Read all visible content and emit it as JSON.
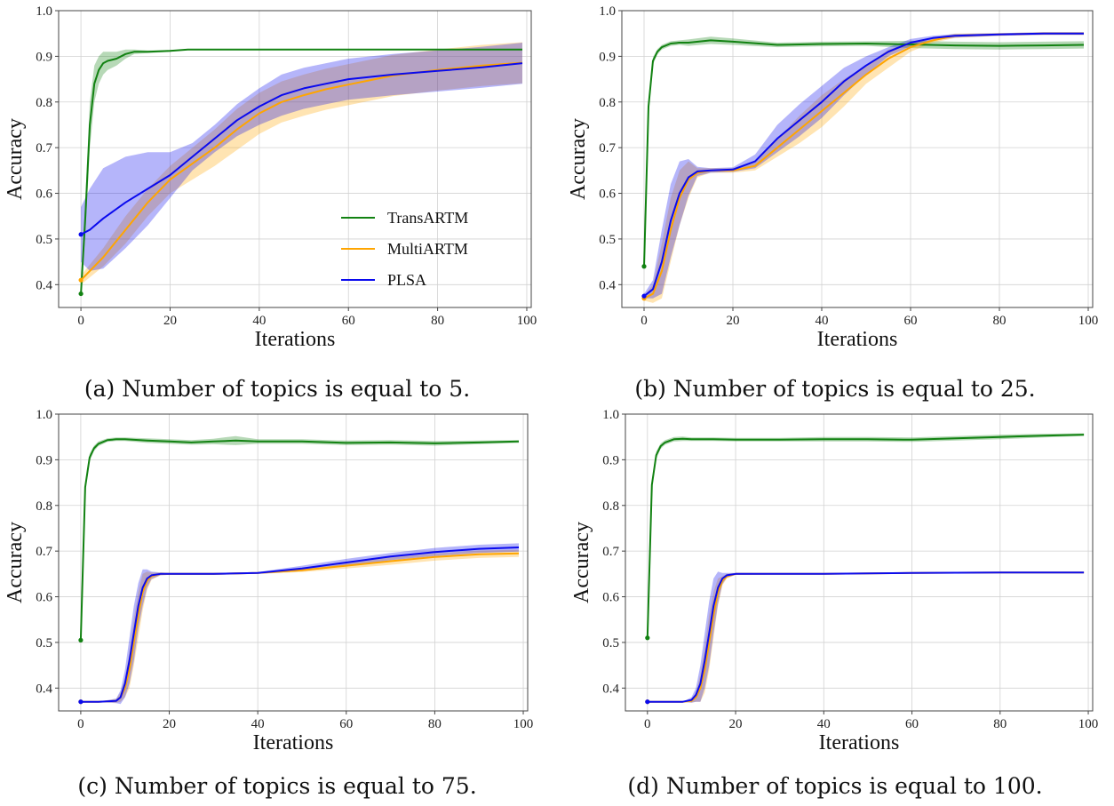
{
  "legend": [
    {
      "name": "TransARTM",
      "color": "#128212"
    },
    {
      "name": "MultiARTM",
      "color": "#ffa500"
    },
    {
      "name": "PLSA",
      "color": "#0a0aee"
    }
  ],
  "chart_data": [
    {
      "type": "line",
      "caption": "(a) Number of topics is equal to 5.",
      "xlabel": "Iterations",
      "ylabel": "Accuracy",
      "xlim": [
        -5,
        101
      ],
      "ylim": [
        0.35,
        1.0
      ],
      "xticks": [
        0,
        20,
        40,
        60,
        80,
        100
      ],
      "yticks": [
        0.4,
        0.5,
        0.6,
        0.7,
        0.8,
        0.9,
        1.0
      ],
      "grid": true,
      "legend_position": "bottom-right",
      "show_legend": true,
      "series": [
        {
          "name": "TransARTM",
          "color": "#128212",
          "x": [
            0,
            1,
            2,
            3,
            4,
            5,
            6,
            8,
            10,
            12,
            15,
            20,
            24,
            30,
            40,
            60,
            80,
            99
          ],
          "y": [
            0.38,
            0.55,
            0.75,
            0.84,
            0.87,
            0.885,
            0.89,
            0.895,
            0.905,
            0.91,
            0.91,
            0.912,
            0.915,
            0.915,
            0.915,
            0.915,
            0.915,
            0.915
          ],
          "band": [
            0.0,
            0.04,
            0.05,
            0.04,
            0.03,
            0.025,
            0.02,
            0.015,
            0.01,
            0.005,
            0.003,
            0.002,
            0.0,
            0.0,
            0.0,
            0.0,
            0.0,
            0.0
          ]
        },
        {
          "name": "MultiARTM",
          "color": "#ffa500",
          "x": [
            0,
            5,
            10,
            15,
            20,
            25,
            30,
            35,
            40,
            45,
            50,
            55,
            60,
            65,
            70,
            80,
            90,
            99
          ],
          "y": [
            0.41,
            0.46,
            0.52,
            0.58,
            0.63,
            0.665,
            0.7,
            0.74,
            0.775,
            0.8,
            0.815,
            0.828,
            0.838,
            0.848,
            0.858,
            0.87,
            0.88,
            0.886
          ],
          "band": [
            0.01,
            0.02,
            0.03,
            0.03,
            0.03,
            0.035,
            0.04,
            0.045,
            0.045,
            0.045,
            0.045,
            0.045,
            0.045,
            0.045,
            0.045,
            0.045,
            0.045,
            0.045
          ]
        },
        {
          "name": "PLSA",
          "color": "#0a0aee",
          "x": [
            0,
            2,
            5,
            10,
            15,
            20,
            25,
            30,
            35,
            40,
            45,
            50,
            55,
            60,
            70,
            80,
            90,
            99
          ],
          "y": [
            0.51,
            0.52,
            0.545,
            0.58,
            0.61,
            0.64,
            0.68,
            0.72,
            0.76,
            0.79,
            0.815,
            0.83,
            0.84,
            0.85,
            0.86,
            0.868,
            0.876,
            0.885
          ],
          "band": [
            0.06,
            0.09,
            0.11,
            0.1,
            0.08,
            0.05,
            0.03,
            0.03,
            0.035,
            0.04,
            0.045,
            0.045,
            0.045,
            0.045,
            0.045,
            0.045,
            0.045,
            0.045
          ]
        }
      ]
    },
    {
      "type": "line",
      "caption": "(b) Number of topics is equal to 25.",
      "xlabel": "Iterations",
      "ylabel": "Accuracy",
      "xlim": [
        -5,
        101
      ],
      "ylim": [
        0.35,
        1.0
      ],
      "xticks": [
        0,
        20,
        40,
        60,
        80,
        100
      ],
      "yticks": [
        0.4,
        0.5,
        0.6,
        0.7,
        0.8,
        0.9,
        1.0
      ],
      "grid": true,
      "show_legend": false,
      "series": [
        {
          "name": "TransARTM",
          "color": "#128212",
          "x": [
            0,
            1,
            2,
            3,
            4,
            6,
            8,
            10,
            15,
            20,
            30,
            40,
            50,
            60,
            70,
            80,
            90,
            99
          ],
          "y": [
            0.44,
            0.79,
            0.89,
            0.91,
            0.92,
            0.928,
            0.93,
            0.93,
            0.935,
            0.932,
            0.925,
            0.927,
            0.928,
            0.926,
            0.924,
            0.923,
            0.924,
            0.925
          ],
          "band": [
            0.0,
            0.01,
            0.008,
            0.006,
            0.005,
            0.005,
            0.005,
            0.007,
            0.008,
            0.007,
            0.005,
            0.005,
            0.005,
            0.008,
            0.008,
            0.008,
            0.008,
            0.008
          ]
        },
        {
          "name": "MultiARTM",
          "color": "#ffa500",
          "x": [
            0,
            2,
            4,
            6,
            8,
            10,
            12,
            15,
            20,
            25,
            30,
            35,
            40,
            45,
            50,
            55,
            60,
            65,
            70,
            80,
            90,
            99
          ],
          "y": [
            0.37,
            0.38,
            0.43,
            0.52,
            0.59,
            0.63,
            0.645,
            0.65,
            0.65,
            0.66,
            0.7,
            0.74,
            0.78,
            0.82,
            0.86,
            0.895,
            0.92,
            0.935,
            0.945,
            0.948,
            0.95,
            0.95
          ],
          "band": [
            0.005,
            0.02,
            0.06,
            0.07,
            0.06,
            0.04,
            0.01,
            0.005,
            0.005,
            0.01,
            0.02,
            0.03,
            0.035,
            0.03,
            0.02,
            0.02,
            0.01,
            0.005,
            0.005,
            0.003,
            0.003,
            0.003
          ]
        },
        {
          "name": "PLSA",
          "color": "#0a0aee",
          "x": [
            0,
            2,
            4,
            6,
            8,
            10,
            12,
            15,
            20,
            25,
            30,
            35,
            40,
            45,
            50,
            55,
            60,
            65,
            70,
            80,
            90,
            99
          ],
          "y": [
            0.375,
            0.39,
            0.45,
            0.54,
            0.6,
            0.635,
            0.648,
            0.65,
            0.652,
            0.67,
            0.72,
            0.76,
            0.8,
            0.845,
            0.88,
            0.91,
            0.93,
            0.94,
            0.945,
            0.948,
            0.95,
            0.95
          ],
          "band": [
            0.005,
            0.02,
            0.07,
            0.08,
            0.07,
            0.04,
            0.01,
            0.005,
            0.005,
            0.015,
            0.03,
            0.035,
            0.035,
            0.03,
            0.02,
            0.01,
            0.008,
            0.005,
            0.004,
            0.003,
            0.003,
            0.003
          ]
        }
      ]
    },
    {
      "type": "line",
      "caption": "(c) Number of topics is equal to 75.",
      "xlabel": "Iterations",
      "ylabel": "Accuracy",
      "xlim": [
        -5,
        101
      ],
      "ylim": [
        0.35,
        1.0
      ],
      "xticks": [
        0,
        20,
        40,
        60,
        80,
        100
      ],
      "yticks": [
        0.4,
        0.5,
        0.6,
        0.7,
        0.8,
        0.9,
        1.0
      ],
      "grid": true,
      "show_legend": false,
      "series": [
        {
          "name": "TransARTM",
          "color": "#128212",
          "x": [
            0,
            1,
            2,
            3,
            4,
            6,
            8,
            10,
            15,
            20,
            25,
            30,
            35,
            40,
            50,
            60,
            70,
            80,
            90,
            99
          ],
          "y": [
            0.505,
            0.84,
            0.905,
            0.925,
            0.935,
            0.943,
            0.945,
            0.945,
            0.942,
            0.94,
            0.938,
            0.94,
            0.942,
            0.94,
            0.94,
            0.937,
            0.938,
            0.936,
            0.938,
            0.94
          ],
          "band": [
            0.0,
            0.01,
            0.008,
            0.006,
            0.005,
            0.004,
            0.004,
            0.004,
            0.005,
            0.005,
            0.005,
            0.006,
            0.01,
            0.005,
            0.005,
            0.005,
            0.005,
            0.005,
            0.004,
            0.003
          ]
        },
        {
          "name": "MultiARTM",
          "color": "#ffa500",
          "x": [
            0,
            4,
            8,
            9,
            10,
            11,
            12,
            13,
            14,
            15,
            16,
            18,
            20,
            30,
            40,
            50,
            60,
            70,
            80,
            90,
            99
          ],
          "y": [
            0.37,
            0.37,
            0.372,
            0.38,
            0.4,
            0.44,
            0.5,
            0.56,
            0.61,
            0.635,
            0.645,
            0.65,
            0.65,
            0.65,
            0.652,
            0.658,
            0.668,
            0.678,
            0.687,
            0.693,
            0.695
          ],
          "band": [
            0.0,
            0.0,
            0.004,
            0.01,
            0.02,
            0.04,
            0.05,
            0.05,
            0.04,
            0.02,
            0.008,
            0.003,
            0.002,
            0.002,
            0.002,
            0.004,
            0.006,
            0.008,
            0.008,
            0.008,
            0.008
          ]
        },
        {
          "name": "PLSA",
          "color": "#0a0aee",
          "x": [
            0,
            4,
            8,
            9,
            10,
            11,
            12,
            13,
            14,
            15,
            16,
            18,
            20,
            30,
            40,
            50,
            60,
            70,
            80,
            90,
            99
          ],
          "y": [
            0.37,
            0.37,
            0.372,
            0.38,
            0.41,
            0.46,
            0.52,
            0.58,
            0.62,
            0.64,
            0.647,
            0.65,
            0.65,
            0.65,
            0.652,
            0.662,
            0.675,
            0.688,
            0.698,
            0.705,
            0.708
          ],
          "band": [
            0.0,
            0.0,
            0.005,
            0.015,
            0.03,
            0.05,
            0.06,
            0.05,
            0.04,
            0.02,
            0.008,
            0.003,
            0.002,
            0.002,
            0.002,
            0.006,
            0.008,
            0.008,
            0.009,
            0.009,
            0.009
          ]
        }
      ]
    },
    {
      "type": "line",
      "caption": "(d) Number of topics is equal to 100.",
      "xlabel": "Iterations",
      "ylabel": "Accuracy",
      "xlim": [
        -5,
        101
      ],
      "ylim": [
        0.35,
        1.0
      ],
      "xticks": [
        0,
        20,
        40,
        60,
        80,
        100
      ],
      "yticks": [
        0.4,
        0.5,
        0.6,
        0.7,
        0.8,
        0.9,
        1.0
      ],
      "grid": true,
      "show_legend": false,
      "series": [
        {
          "name": "TransARTM",
          "color": "#128212",
          "x": [
            0,
            1,
            2,
            3,
            4,
            6,
            8,
            10,
            15,
            20,
            30,
            40,
            50,
            60,
            70,
            80,
            90,
            99
          ],
          "y": [
            0.51,
            0.845,
            0.91,
            0.93,
            0.938,
            0.945,
            0.946,
            0.945,
            0.945,
            0.944,
            0.944,
            0.945,
            0.945,
            0.944,
            0.947,
            0.95,
            0.953,
            0.955
          ],
          "band": [
            0.0,
            0.01,
            0.008,
            0.006,
            0.005,
            0.005,
            0.005,
            0.004,
            0.004,
            0.004,
            0.004,
            0.005,
            0.005,
            0.005,
            0.005,
            0.005,
            0.004,
            0.003
          ]
        },
        {
          "name": "MultiARTM",
          "color": "#ffa500",
          "x": [
            0,
            4,
            8,
            10,
            11,
            12,
            13,
            14,
            15,
            16,
            17,
            18,
            20,
            30,
            40,
            60,
            80,
            99
          ],
          "y": [
            0.37,
            0.37,
            0.37,
            0.372,
            0.38,
            0.4,
            0.44,
            0.5,
            0.56,
            0.61,
            0.635,
            0.645,
            0.65,
            0.65,
            0.65,
            0.652,
            0.653,
            0.653
          ],
          "band": [
            0.0,
            0.0,
            0.0,
            0.004,
            0.01,
            0.03,
            0.05,
            0.06,
            0.05,
            0.03,
            0.01,
            0.005,
            0.002,
            0.001,
            0.001,
            0.001,
            0.001,
            0.001
          ]
        },
        {
          "name": "PLSA",
          "color": "#0a0aee",
          "x": [
            0,
            4,
            8,
            10,
            11,
            12,
            13,
            14,
            15,
            16,
            17,
            18,
            20,
            30,
            40,
            60,
            80,
            99
          ],
          "y": [
            0.37,
            0.37,
            0.37,
            0.374,
            0.385,
            0.41,
            0.46,
            0.52,
            0.58,
            0.62,
            0.64,
            0.647,
            0.65,
            0.65,
            0.65,
            0.652,
            0.653,
            0.653
          ],
          "band": [
            0.0,
            0.0,
            0.0,
            0.006,
            0.015,
            0.04,
            0.06,
            0.07,
            0.06,
            0.035,
            0.012,
            0.005,
            0.002,
            0.001,
            0.001,
            0.001,
            0.001,
            0.001
          ]
        }
      ]
    }
  ]
}
